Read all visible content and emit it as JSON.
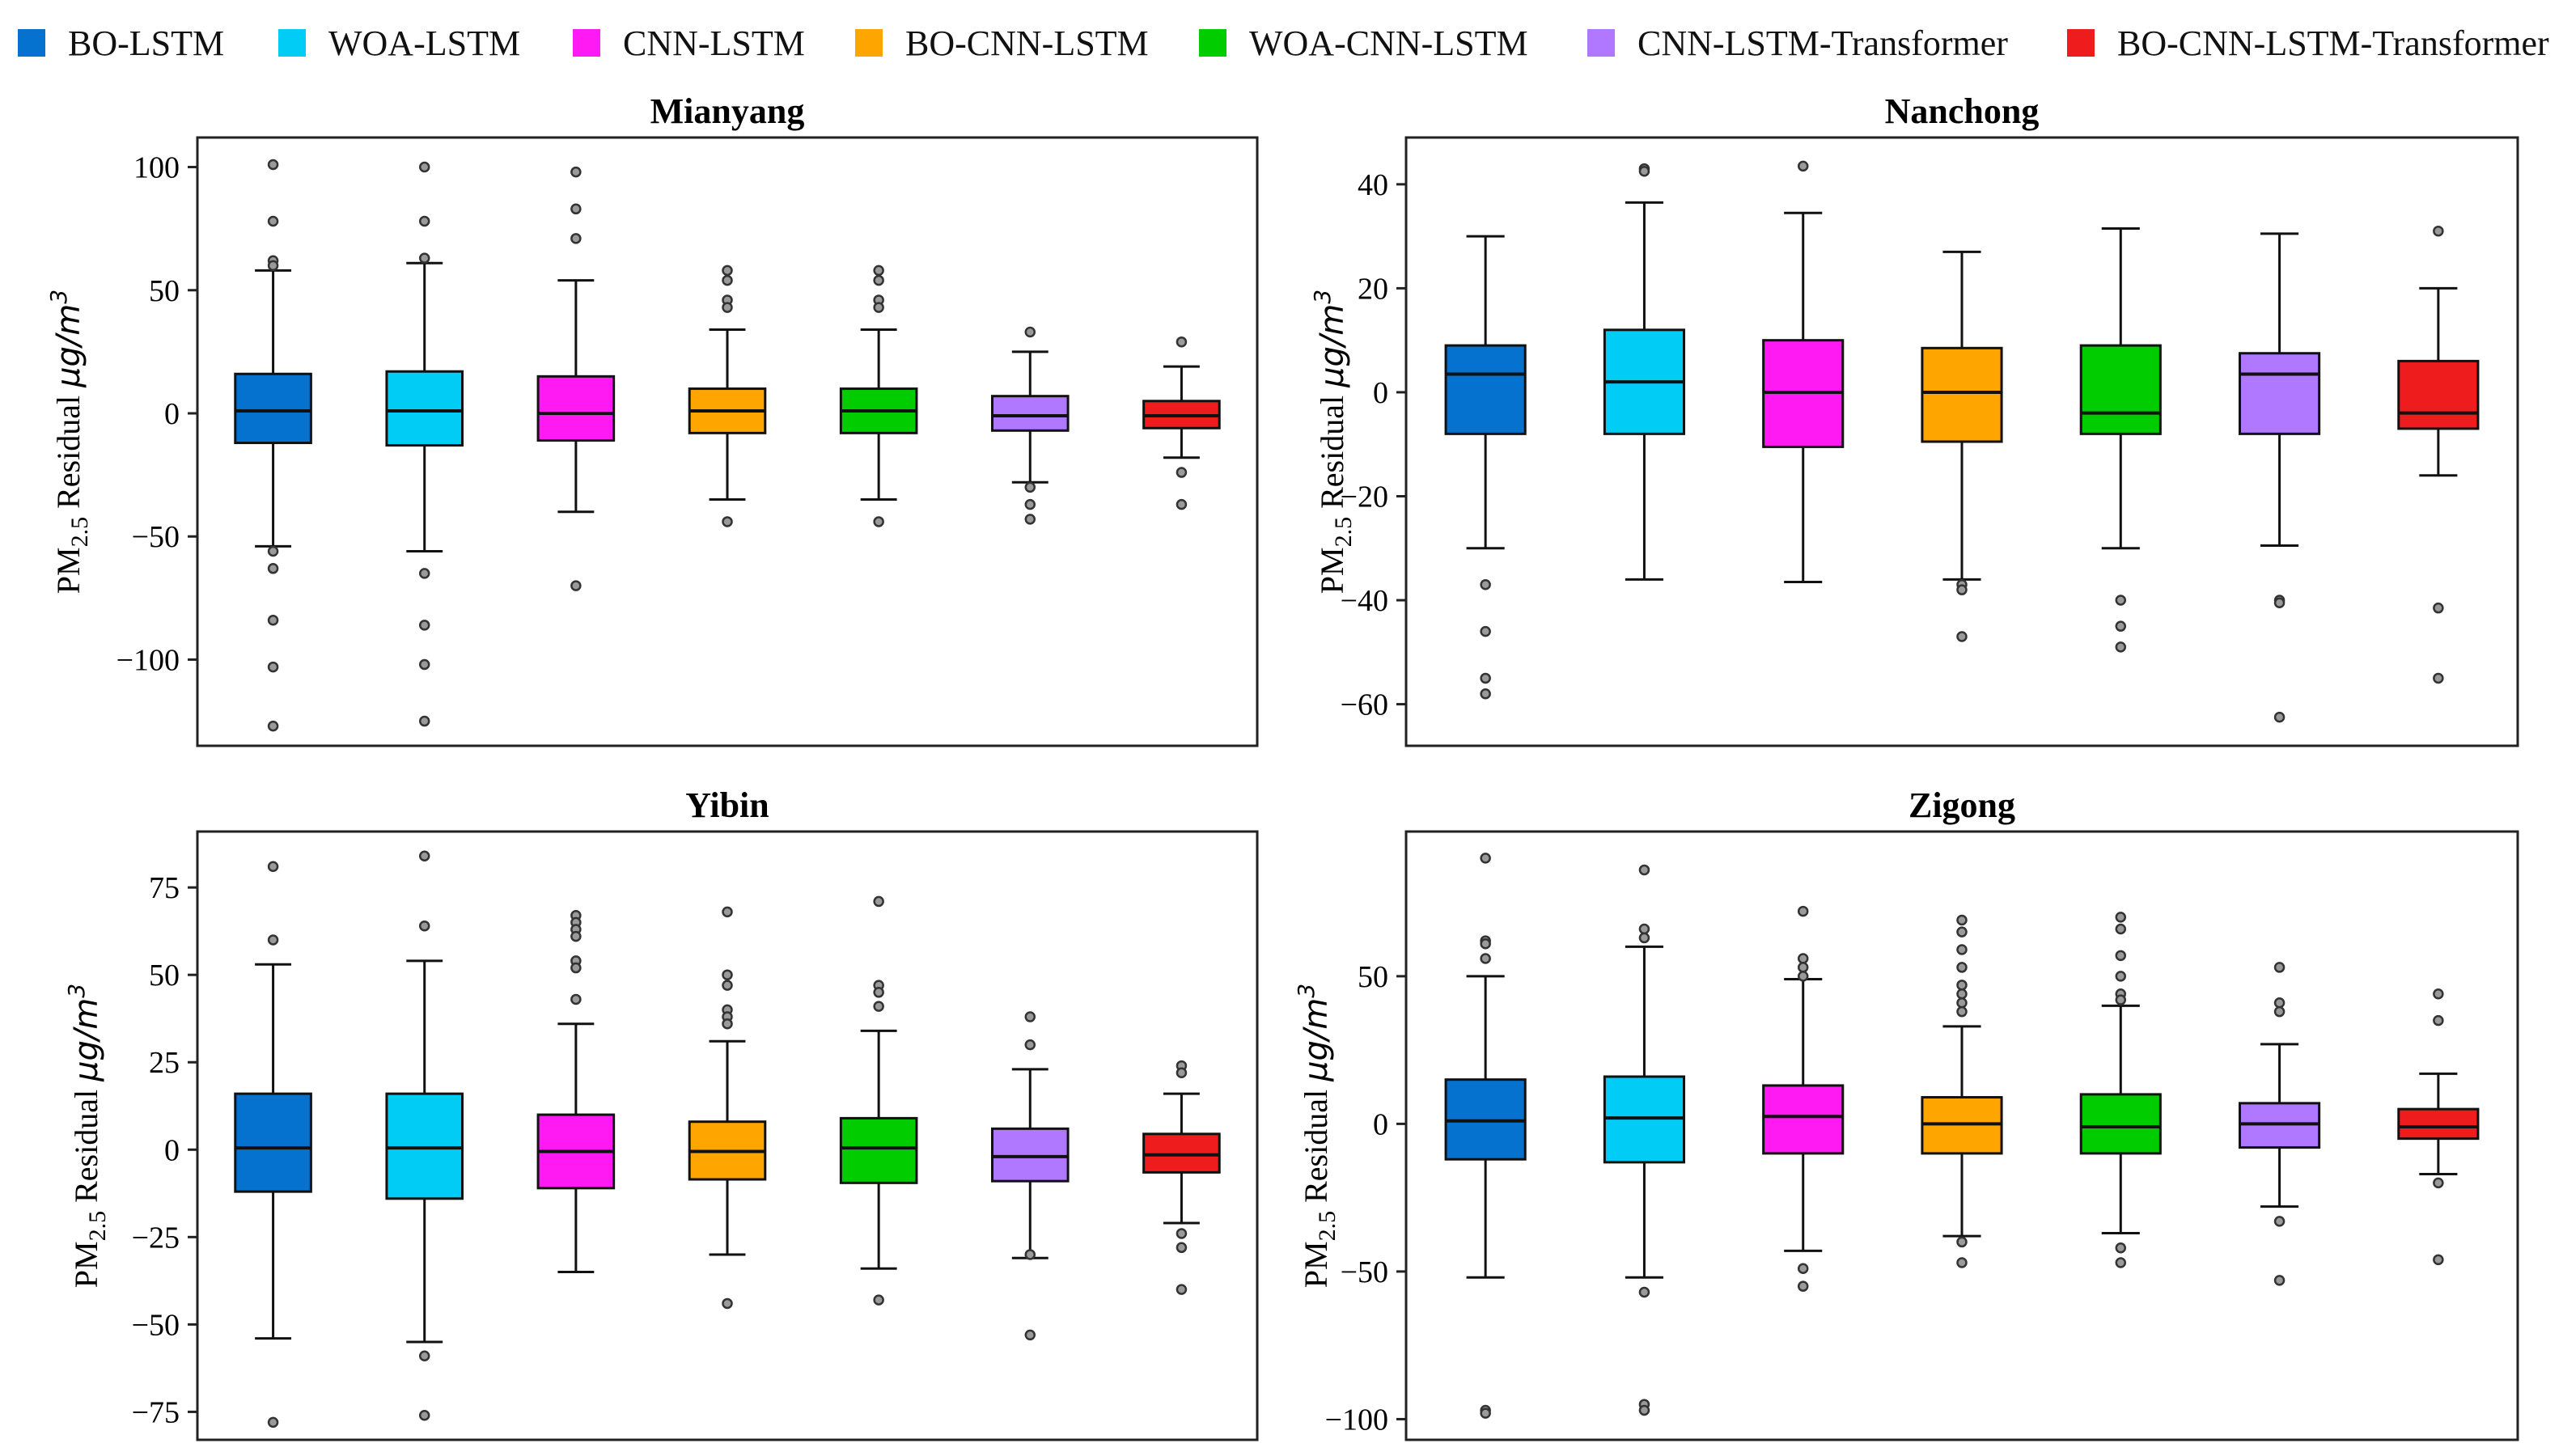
{
  "legend": [
    {
      "name": "BO-LSTM",
      "color": "#0672CF"
    },
    {
      "name": "WOA-LSTM",
      "color": "#00CCF5"
    },
    {
      "name": "CNN-LSTM",
      "color": "#FF1AF4"
    },
    {
      "name": "BO-CNN-LSTM",
      "color": "#FFA500"
    },
    {
      "name": "WOA-CNN-LSTM",
      "color": "#00CC00"
    },
    {
      "name": "CNN-LSTM-Transformer",
      "color": "#B077FF"
    },
    {
      "name": "BO-CNN-LSTM-Transformer",
      "color": "#EE1C1C"
    }
  ],
  "ylabel": {
    "prefix": "PM",
    "subscript": "2.5",
    "middle": " Residual ",
    "unit": "μg/m",
    "sup": "3"
  },
  "chart_data": [
    {
      "type": "box",
      "title": "Mianyang",
      "ylim": [
        -135,
        112
      ],
      "yticks": [
        100,
        50,
        0,
        -50,
        -100
      ],
      "yticklabels": [
        "100",
        "50",
        "0",
        "−50",
        "−100"
      ],
      "boxes": [
        {
          "series": "BO-LSTM",
          "q1": -12,
          "median": 1,
          "q3": 16,
          "whisker_low": -54,
          "whisker_high": 58,
          "outliers": [
            101,
            78,
            62,
            60,
            -56,
            -63,
            -84,
            -103,
            -127
          ]
        },
        {
          "series": "WOA-LSTM",
          "q1": -13,
          "median": 1,
          "q3": 17,
          "whisker_low": -56,
          "whisker_high": 61,
          "outliers": [
            100,
            78,
            63,
            -65,
            -86,
            -102,
            -125
          ]
        },
        {
          "series": "CNN-LSTM",
          "q1": -11,
          "median": 0,
          "q3": 15,
          "whisker_low": -40,
          "whisker_high": 54,
          "outliers": [
            98,
            83,
            71,
            -70
          ]
        },
        {
          "series": "BO-CNN-LSTM",
          "q1": -8,
          "median": 1,
          "q3": 10,
          "whisker_low": -35,
          "whisker_high": 34,
          "outliers": [
            58,
            54,
            46,
            43,
            -44
          ]
        },
        {
          "series": "WOA-CNN-LSTM",
          "q1": -8,
          "median": 1,
          "q3": 10,
          "whisker_low": -35,
          "whisker_high": 34,
          "outliers": [
            58,
            54,
            46,
            43,
            -44
          ]
        },
        {
          "series": "CNN-LSTM-Transformer",
          "q1": -7,
          "median": -1,
          "q3": 7,
          "whisker_low": -28,
          "whisker_high": 25,
          "outliers": [
            33,
            -30,
            -37,
            -43
          ]
        },
        {
          "series": "BO-CNN-LSTM-Transformer",
          "q1": -6,
          "median": -1,
          "q3": 5,
          "whisker_low": -18,
          "whisker_high": 19,
          "outliers": [
            29,
            -24,
            -37
          ]
        }
      ]
    },
    {
      "type": "box",
      "title": "Nanchong",
      "ylim": [
        -68,
        49
      ],
      "yticks": [
        40,
        20,
        0,
        -20,
        -40,
        -60
      ],
      "yticklabels": [
        "40",
        "20",
        "0",
        "−20",
        "−40",
        "−60"
      ],
      "boxes": [
        {
          "series": "BO-LSTM",
          "q1": -8,
          "median": 3.5,
          "q3": 9,
          "whisker_low": -30,
          "whisker_high": 30,
          "outliers": [
            -37,
            -46,
            -55,
            -58
          ]
        },
        {
          "series": "WOA-LSTM",
          "q1": -8,
          "median": 2,
          "q3": 12,
          "whisker_low": -36,
          "whisker_high": 36.5,
          "outliers": [
            43,
            42.5
          ]
        },
        {
          "series": "CNN-LSTM",
          "q1": -10.5,
          "median": 0,
          "q3": 10,
          "whisker_low": -36.5,
          "whisker_high": 34.5,
          "outliers": [
            43.5
          ]
        },
        {
          "series": "BO-CNN-LSTM",
          "q1": -9.5,
          "median": 0,
          "q3": 8.5,
          "whisker_low": -36,
          "whisker_high": 27,
          "outliers": [
            -37,
            -38,
            -47
          ]
        },
        {
          "series": "WOA-CNN-LSTM",
          "q1": -8,
          "median": -4,
          "q3": 9,
          "whisker_low": -30,
          "whisker_high": 31.5,
          "outliers": [
            -40,
            -45,
            -49
          ]
        },
        {
          "series": "CNN-LSTM-Transformer",
          "q1": -8,
          "median": 3.5,
          "q3": 7.5,
          "whisker_low": -29.5,
          "whisker_high": 30.5,
          "outliers": [
            -40,
            -40.5,
            -62.5
          ]
        },
        {
          "series": "BO-CNN-LSTM-Transformer",
          "q1": -7,
          "median": -4,
          "q3": 6,
          "whisker_low": -16,
          "whisker_high": 20,
          "outliers": [
            31,
            -41.5,
            -55
          ]
        }
      ]
    },
    {
      "type": "box",
      "title": "Yibin",
      "ylim": [
        -83,
        91
      ],
      "yticks": [
        75,
        50,
        25,
        0,
        -25,
        -50,
        -75
      ],
      "yticklabels": [
        "75",
        "50",
        "25",
        "0",
        "−25",
        "−50",
        "−75"
      ],
      "boxes": [
        {
          "series": "BO-LSTM",
          "q1": -12,
          "median": 0.5,
          "q3": 16,
          "whisker_low": -54,
          "whisker_high": 53,
          "outliers": [
            81,
            60,
            -78
          ]
        },
        {
          "series": "WOA-LSTM",
          "q1": -14,
          "median": 0.5,
          "q3": 16,
          "whisker_low": -55,
          "whisker_high": 54,
          "outliers": [
            84,
            64,
            -59,
            -76
          ]
        },
        {
          "series": "CNN-LSTM",
          "q1": -11,
          "median": -0.5,
          "q3": 10,
          "whisker_low": -35,
          "whisker_high": 36,
          "outliers": [
            67,
            65,
            63,
            61,
            54,
            52,
            43
          ]
        },
        {
          "series": "BO-CNN-LSTM",
          "q1": -8.5,
          "median": -0.5,
          "q3": 8,
          "whisker_low": -30,
          "whisker_high": 31,
          "outliers": [
            68,
            50,
            47,
            40,
            38,
            36,
            -44
          ]
        },
        {
          "series": "WOA-CNN-LSTM",
          "q1": -9.5,
          "median": 0.5,
          "q3": 9,
          "whisker_low": -34,
          "whisker_high": 34,
          "outliers": [
            71,
            47,
            45,
            41,
            -43
          ]
        },
        {
          "series": "CNN-LSTM-Transformer",
          "q1": -9,
          "median": -2,
          "q3": 6,
          "whisker_low": -31,
          "whisker_high": 23,
          "outliers": [
            38,
            30,
            -30,
            -53
          ]
        },
        {
          "series": "BO-CNN-LSTM-Transformer",
          "q1": -6.5,
          "median": -1.5,
          "q3": 4.5,
          "whisker_low": -21,
          "whisker_high": 16,
          "outliers": [
            24,
            22,
            -24,
            -28,
            -40
          ]
        }
      ]
    },
    {
      "type": "box",
      "title": "Zigong",
      "ylim": [
        -107,
        99
      ],
      "yticks": [
        50,
        0,
        -50,
        -100
      ],
      "yticklabels": [
        "50",
        "0",
        "−50",
        "−100"
      ],
      "boxes": [
        {
          "series": "BO-LSTM",
          "q1": -12,
          "median": 1,
          "q3": 15,
          "whisker_low": -52,
          "whisker_high": 50,
          "outliers": [
            90,
            62,
            61,
            56,
            -97,
            -98
          ]
        },
        {
          "series": "WOA-LSTM",
          "q1": -13,
          "median": 2,
          "q3": 16,
          "whisker_low": -52,
          "whisker_high": 60,
          "outliers": [
            86,
            66,
            63,
            -57,
            -95,
            -97
          ]
        },
        {
          "series": "CNN-LSTM",
          "q1": -10,
          "median": 2.5,
          "q3": 13,
          "whisker_low": -43,
          "whisker_high": 49,
          "outliers": [
            72,
            56,
            53,
            50,
            -49,
            -55
          ]
        },
        {
          "series": "BO-CNN-LSTM",
          "q1": -10,
          "median": 0,
          "q3": 9,
          "whisker_low": -38,
          "whisker_high": 33,
          "outliers": [
            69,
            65,
            59,
            53,
            47,
            44,
            41,
            38,
            -40,
            -47
          ]
        },
        {
          "series": "WOA-CNN-LSTM",
          "q1": -10,
          "median": -1,
          "q3": 10,
          "whisker_low": -37,
          "whisker_high": 40,
          "outliers": [
            70,
            66,
            57,
            50,
            44,
            42,
            -42,
            -47
          ]
        },
        {
          "series": "CNN-LSTM-Transformer",
          "q1": -8,
          "median": 0,
          "q3": 7,
          "whisker_low": -28,
          "whisker_high": 27,
          "outliers": [
            53,
            41,
            38,
            -33,
            -53
          ]
        },
        {
          "series": "BO-CNN-LSTM-Transformer",
          "q1": -5,
          "median": -1,
          "q3": 5,
          "whisker_low": -17,
          "whisker_high": 17,
          "outliers": [
            44,
            35,
            -20,
            -46
          ]
        }
      ]
    }
  ]
}
